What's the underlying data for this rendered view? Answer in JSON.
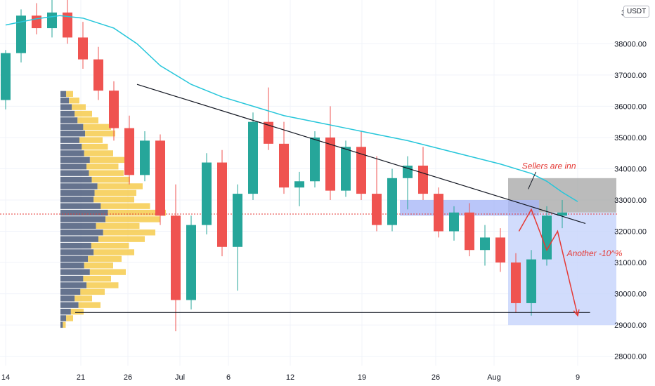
{
  "chart_data": {
    "type": "candlestick",
    "y_unit": "USDT",
    "ylim": [
      27700,
      39400
    ],
    "y_ticks": [
      {
        "value": 28000,
        "label": "28000.00"
      },
      {
        "value": 29000,
        "label": "29000.00"
      },
      {
        "value": 30000,
        "label": "30000.00"
      },
      {
        "value": 31000,
        "label": "31000.00"
      },
      {
        "value": 32000,
        "label": "32000.00"
      },
      {
        "value": 33000,
        "label": "33000.00"
      },
      {
        "value": 34000,
        "label": "34000.00"
      },
      {
        "value": 35000,
        "label": "35000.00"
      },
      {
        "value": 36000,
        "label": "36000.00"
      },
      {
        "value": 37000,
        "label": "37000.00"
      },
      {
        "value": 38000,
        "label": "38000.00"
      }
    ],
    "top_partial_label": "3",
    "x_ticks": [
      {
        "label": "14"
      },
      {
        "label": "21"
      },
      {
        "label": "26"
      },
      {
        "label": "Jul"
      },
      {
        "label": "6"
      },
      {
        "label": "12"
      },
      {
        "label": "19"
      },
      {
        "label": "26"
      },
      {
        "label": "Aug"
      },
      {
        "label": "9"
      }
    ],
    "price_line": 32550,
    "moving_average": [
      [
        0,
        38600
      ],
      [
        2,
        38800
      ],
      [
        3.5,
        38900
      ],
      [
        5,
        38820
      ],
      [
        7,
        38500
      ],
      [
        8.5,
        38000
      ],
      [
        10,
        37300
      ],
      [
        12,
        36700
      ],
      [
        14,
        36300
      ],
      [
        16,
        36000
      ],
      [
        18,
        35700
      ],
      [
        20,
        35500
      ],
      [
        22,
        35300
      ],
      [
        24,
        35100
      ],
      [
        26,
        34900
      ],
      [
        28,
        34650
      ],
      [
        30,
        34400
      ],
      [
        32,
        34150
      ],
      [
        34,
        33850
      ],
      [
        35,
        33600
      ],
      [
        36,
        33250
      ],
      [
        37,
        32950
      ]
    ],
    "candles": [
      {
        "o": 36200,
        "h": 37800,
        "l": 35900,
        "c": 37700
      },
      {
        "o": 37700,
        "h": 39100,
        "l": 37400,
        "c": 38900
      },
      {
        "o": 38900,
        "h": 39300,
        "l": 38300,
        "c": 38500
      },
      {
        "o": 38500,
        "h": 39400,
        "l": 38200,
        "c": 39000
      },
      {
        "o": 39000,
        "h": 39400,
        "l": 38000,
        "c": 38200
      },
      {
        "o": 38200,
        "h": 38700,
        "l": 37200,
        "c": 37500
      },
      {
        "o": 37500,
        "h": 37900,
        "l": 36200,
        "c": 36500
      },
      {
        "o": 36500,
        "h": 36800,
        "l": 34900,
        "c": 35300
      },
      {
        "o": 35300,
        "h": 35700,
        "l": 33500,
        "c": 33800
      },
      {
        "o": 33800,
        "h": 35200,
        "l": 33600,
        "c": 34900
      },
      {
        "o": 34900,
        "h": 35100,
        "l": 32200,
        "c": 32500
      },
      {
        "o": 32500,
        "h": 33500,
        "l": 28800,
        "c": 29800
      },
      {
        "o": 29800,
        "h": 32500,
        "l": 29500,
        "c": 32200
      },
      {
        "o": 32200,
        "h": 34500,
        "l": 31900,
        "c": 34200
      },
      {
        "o": 34200,
        "h": 34600,
        "l": 31200,
        "c": 31500
      },
      {
        "o": 31500,
        "h": 33500,
        "l": 30100,
        "c": 33200
      },
      {
        "o": 33200,
        "h": 35800,
        "l": 33000,
        "c": 35500
      },
      {
        "o": 35500,
        "h": 36600,
        "l": 34600,
        "c": 34800
      },
      {
        "o": 34800,
        "h": 35500,
        "l": 33200,
        "c": 33400
      },
      {
        "o": 33400,
        "h": 33900,
        "l": 32800,
        "c": 33600
      },
      {
        "o": 33600,
        "h": 35200,
        "l": 33400,
        "c": 35000
      },
      {
        "o": 35000,
        "h": 36000,
        "l": 33000,
        "c": 33300
      },
      {
        "o": 33300,
        "h": 34900,
        "l": 33100,
        "c": 34700
      },
      {
        "o": 34700,
        "h": 35200,
        "l": 33000,
        "c": 33200
      },
      {
        "o": 33200,
        "h": 34400,
        "l": 32000,
        "c": 32200
      },
      {
        "o": 32200,
        "h": 34000,
        "l": 32000,
        "c": 33700
      },
      {
        "o": 33700,
        "h": 34400,
        "l": 32700,
        "c": 34100
      },
      {
        "o": 34100,
        "h": 34700,
        "l": 33000,
        "c": 33200
      },
      {
        "o": 33200,
        "h": 33400,
        "l": 31800,
        "c": 32000
      },
      {
        "o": 32000,
        "h": 32800,
        "l": 31700,
        "c": 32600
      },
      {
        "o": 32600,
        "h": 32900,
        "l": 31200,
        "c": 31400
      },
      {
        "o": 31400,
        "h": 32200,
        "l": 30900,
        "c": 31800
      },
      {
        "o": 31800,
        "h": 32100,
        "l": 30700,
        "c": 31000
      },
      {
        "o": 31000,
        "h": 31300,
        "l": 29400,
        "c": 29700
      },
      {
        "o": 29700,
        "h": 31400,
        "l": 29300,
        "c": 31100
      },
      {
        "o": 31100,
        "h": 32800,
        "l": 30900,
        "c": 32500
      },
      {
        "o": 32500,
        "h": 33000,
        "l": 32100,
        "c": 32600
      }
    ],
    "volume_profile": {
      "price_min": 28900,
      "price_max": 36500,
      "weights": [
        0.05,
        0.12,
        0.22,
        0.38,
        0.3,
        0.42,
        0.55,
        0.48,
        0.62,
        0.5,
        0.58,
        0.7,
        0.65,
        0.8,
        0.9,
        0.75,
        0.95,
        1.0,
        0.85,
        0.7,
        0.72,
        0.78,
        0.66,
        0.6,
        0.55,
        0.62,
        0.5,
        0.45,
        0.4,
        0.52,
        0.48,
        0.36,
        0.3,
        0.24,
        0.18,
        0.12
      ],
      "colors": {
        "buy": "#f5c842",
        "sell": "#4a5a7a"
      }
    },
    "trendline": {
      "from": [
        8.5,
        36700
      ],
      "to": [
        37.5,
        32250
      ]
    },
    "support_line": {
      "from": [
        4.5,
        29400
      ],
      "to": [
        37.8,
        29400
      ]
    },
    "zones": [
      {
        "kind": "supply",
        "x0": 32.5,
        "x1": 39.5,
        "y0": 32600,
        "y1": 33700,
        "color": "#9e9e9e"
      },
      {
        "kind": "target",
        "x0": 32.5,
        "x1": 39.5,
        "y0": 29000,
        "y1": 32600,
        "color": "#c5d3fb"
      },
      {
        "kind": "resistance",
        "x0": 25.5,
        "x1": 34.5,
        "y0": 32500,
        "y1": 33000,
        "color": "#a9b8f7"
      }
    ],
    "projection_path": [
      [
        33.2,
        32000
      ],
      [
        34,
        32700
      ],
      [
        35,
        31400
      ],
      [
        35.7,
        32000
      ],
      [
        37,
        29300
      ]
    ],
    "annotations": [
      {
        "text": "Sellers are inn",
        "x": 33.4,
        "y": 34000
      },
      {
        "text": "Another -10^%",
        "x": 36.3,
        "y": 31200
      }
    ]
  }
}
